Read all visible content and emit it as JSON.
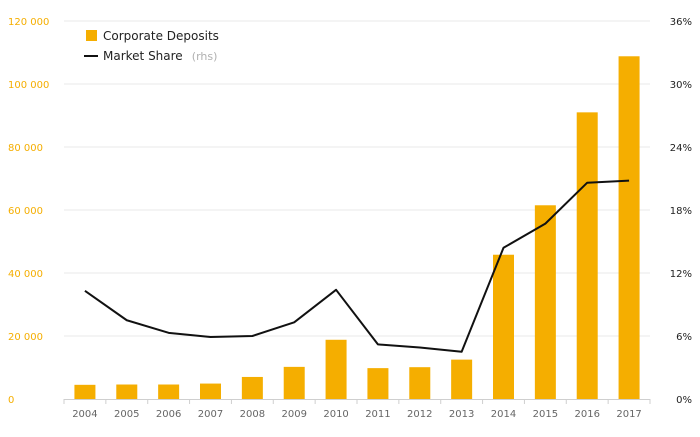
{
  "colors": {
    "bar": "#f5ae00",
    "line": "#111111",
    "left_axis_text": "#f5ae00",
    "grid": "#e9e9e9"
  },
  "chart_data": {
    "type": "bar",
    "categories": [
      "2004",
      "2005",
      "2006",
      "2007",
      "2008",
      "2009",
      "2010",
      "2011",
      "2012",
      "2013",
      "2014",
      "2015",
      "2016",
      "2017"
    ],
    "series": [
      {
        "name": "Corporate Deposits",
        "type": "bar",
        "axis": "left",
        "values": [
          4500,
          4600,
          4600,
          4900,
          7000,
          10200,
          18800,
          9800,
          10100,
          12500,
          45800,
          61500,
          91000,
          108800
        ]
      },
      {
        "name": "Market Share",
        "name_suffix": "(rhs)",
        "type": "line",
        "axis": "right",
        "values": [
          10.3,
          7.5,
          6.3,
          5.9,
          6.0,
          7.3,
          10.4,
          5.2,
          4.9,
          4.5,
          14.4,
          16.7,
          20.6,
          20.8
        ]
      }
    ],
    "left_axis": {
      "ylim": [
        0,
        120000
      ],
      "ticks": [
        0,
        20000,
        40000,
        60000,
        80000,
        100000,
        120000
      ],
      "tick_labels": [
        "0",
        "20 000",
        "40 000",
        "60 000",
        "80 000",
        "100 000",
        "120 000"
      ]
    },
    "right_axis": {
      "ylim": [
        0,
        36
      ],
      "ticks": [
        0,
        6,
        12,
        18,
        24,
        30,
        36
      ],
      "tick_labels": [
        "0%",
        "6%",
        "12%",
        "18%",
        "24%",
        "30%",
        "36%"
      ]
    },
    "grid": true,
    "legend_position": "top-left",
    "legend": [
      {
        "label": "Corporate Deposits",
        "sub": "",
        "marker": "bar"
      },
      {
        "label": "Market Share",
        "sub": "(rhs)",
        "marker": "line"
      }
    ]
  }
}
